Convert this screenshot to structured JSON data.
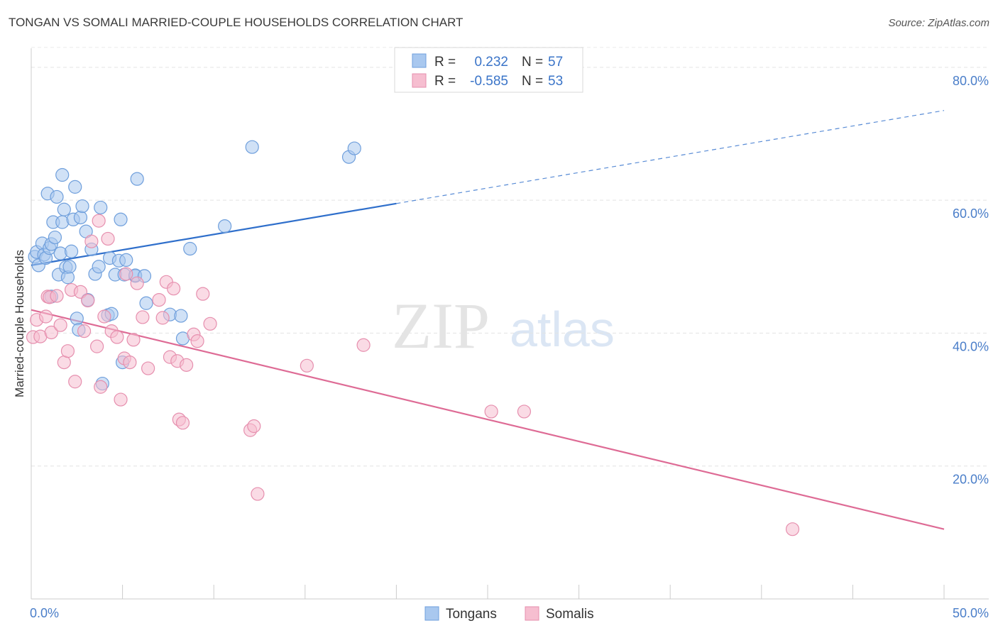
{
  "title": "TONGAN VS SOMALI MARRIED-COUPLE HOUSEHOLDS CORRELATION CHART",
  "source": "Source: ZipAtlas.com",
  "watermark": {
    "zip": "ZIP",
    "atlas": "atlas"
  },
  "chart_data": {
    "type": "scatter",
    "ylabel": "Married-couple Households",
    "xlim": [
      0,
      50
    ],
    "ylim": [
      0,
      85
    ],
    "x_tick_labels": [
      "0.0%",
      "50.0%"
    ],
    "y_ticks": [
      20,
      40,
      60,
      80
    ],
    "y_tick_labels": [
      "20.0%",
      "40.0%",
      "60.0%",
      "80.0%"
    ],
    "legend": {
      "rows": [
        {
          "r_label": "R =",
          "r_value": "0.232",
          "n_label": "N =",
          "n_value": "57"
        },
        {
          "r_label": "R =",
          "r_value": "-0.585",
          "n_label": "N =",
          "n_value": "53"
        }
      ],
      "bottom": [
        "Tongans",
        "Somalis"
      ]
    },
    "colors": {
      "tongans_fill": "#a9c8ef",
      "tongans_stroke": "#6f9fdc",
      "tongans_line": "#2f6fcb",
      "somalis_fill": "#f6bed0",
      "somalis_stroke": "#e68fae",
      "somalis_line": "#de6b95",
      "value_blue": "#3a74c8"
    },
    "series": [
      {
        "name": "Tongans",
        "trend": {
          "x0": 0,
          "y0": 50.2,
          "x1": 20,
          "y1": 59.5,
          "dash_x1": 50,
          "dash_y1": 73.5
        },
        "points": [
          [
            0.2,
            51.5
          ],
          [
            0.3,
            52.2
          ],
          [
            0.4,
            50.2
          ],
          [
            0.6,
            53.5
          ],
          [
            0.7,
            51.8
          ],
          [
            0.8,
            51.3
          ],
          [
            0.9,
            61.0
          ],
          [
            1.0,
            52.8
          ],
          [
            1.1,
            53.4
          ],
          [
            1.1,
            45.5
          ],
          [
            1.2,
            56.7
          ],
          [
            1.3,
            54.4
          ],
          [
            1.4,
            60.5
          ],
          [
            1.5,
            48.8
          ],
          [
            1.6,
            52.0
          ],
          [
            1.7,
            56.7
          ],
          [
            1.7,
            63.8
          ],
          [
            1.8,
            58.6
          ],
          [
            1.9,
            49.9
          ],
          [
            2.0,
            48.4
          ],
          [
            2.1,
            50.0
          ],
          [
            2.2,
            52.3
          ],
          [
            2.3,
            57.1
          ],
          [
            2.4,
            62.0
          ],
          [
            2.5,
            42.2
          ],
          [
            2.6,
            40.5
          ],
          [
            2.7,
            57.4
          ],
          [
            2.8,
            59.1
          ],
          [
            3.0,
            55.3
          ],
          [
            3.1,
            45.0
          ],
          [
            3.3,
            52.6
          ],
          [
            3.5,
            48.9
          ],
          [
            3.7,
            50.0
          ],
          [
            3.8,
            58.9
          ],
          [
            3.9,
            32.4
          ],
          [
            4.2,
            42.7
          ],
          [
            4.3,
            51.3
          ],
          [
            4.4,
            42.9
          ],
          [
            4.6,
            48.8
          ],
          [
            4.8,
            50.9
          ],
          [
            4.9,
            57.1
          ],
          [
            5.0,
            35.6
          ],
          [
            5.1,
            48.8
          ],
          [
            5.2,
            51.0
          ],
          [
            5.7,
            48.6
          ],
          [
            5.7,
            48.7
          ],
          [
            5.8,
            63.2
          ],
          [
            6.2,
            48.6
          ],
          [
            6.3,
            44.5
          ],
          [
            7.6,
            42.8
          ],
          [
            8.2,
            42.6
          ],
          [
            8.3,
            39.2
          ],
          [
            8.7,
            52.7
          ],
          [
            10.6,
            56.1
          ],
          [
            12.1,
            68.0
          ],
          [
            17.4,
            66.5
          ],
          [
            17.7,
            67.8
          ]
        ]
      },
      {
        "name": "Somalis",
        "trend": {
          "x0": 0,
          "y0": 43.5,
          "x1": 50,
          "y1": 10.5
        },
        "points": [
          [
            0.1,
            39.4
          ],
          [
            0.3,
            42.0
          ],
          [
            0.5,
            39.5
          ],
          [
            0.8,
            42.5
          ],
          [
            0.9,
            45.5
          ],
          [
            1.0,
            45.4
          ],
          [
            1.1,
            40.1
          ],
          [
            1.4,
            45.6
          ],
          [
            1.6,
            41.2
          ],
          [
            1.8,
            35.6
          ],
          [
            2.0,
            37.3
          ],
          [
            2.2,
            46.5
          ],
          [
            2.4,
            32.7
          ],
          [
            2.7,
            46.2
          ],
          [
            2.9,
            40.3
          ],
          [
            3.1,
            44.9
          ],
          [
            3.3,
            53.8
          ],
          [
            3.6,
            38.0
          ],
          [
            3.7,
            56.9
          ],
          [
            3.8,
            31.9
          ],
          [
            4.0,
            42.5
          ],
          [
            4.2,
            54.2
          ],
          [
            4.4,
            40.3
          ],
          [
            4.7,
            39.4
          ],
          [
            4.9,
            30.0
          ],
          [
            5.1,
            36.2
          ],
          [
            5.2,
            48.9
          ],
          [
            5.4,
            35.6
          ],
          [
            5.6,
            39.0
          ],
          [
            5.8,
            47.5
          ],
          [
            6.1,
            42.4
          ],
          [
            6.4,
            34.7
          ],
          [
            7.0,
            45.0
          ],
          [
            7.2,
            42.3
          ],
          [
            7.4,
            47.7
          ],
          [
            7.6,
            36.4
          ],
          [
            7.8,
            46.7
          ],
          [
            8.0,
            35.8
          ],
          [
            8.1,
            27.0
          ],
          [
            8.3,
            26.5
          ],
          [
            8.5,
            35.2
          ],
          [
            8.9,
            39.8
          ],
          [
            9.1,
            38.8
          ],
          [
            9.4,
            45.9
          ],
          [
            9.8,
            41.4
          ],
          [
            12.0,
            25.4
          ],
          [
            12.2,
            26.0
          ],
          [
            12.4,
            15.8
          ],
          [
            15.1,
            35.1
          ],
          [
            18.2,
            38.2
          ],
          [
            25.2,
            28.2
          ],
          [
            27.0,
            28.2
          ],
          [
            41.7,
            10.5
          ]
        ]
      }
    ]
  }
}
